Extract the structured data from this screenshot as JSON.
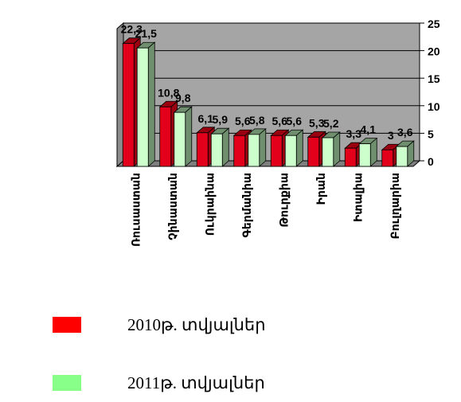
{
  "chart_data": {
    "type": "bar",
    "categories": [
      "Ռուսաստան",
      "Չինաստան",
      "Ուկրաինա",
      "Գերմանիա",
      "Թուրքիա",
      "Իրան",
      "Իտալիա",
      "Բուլղարիա"
    ],
    "series": [
      {
        "name": "2010թ. տվյալներ",
        "values": [
          22.3,
          10.8,
          6.1,
          5.6,
          5.6,
          5.3,
          3.3,
          3
        ]
      },
      {
        "name": "2011թ. տվյալներ",
        "values": [
          21.5,
          9.8,
          5.9,
          5.8,
          5.6,
          5.2,
          4.1,
          3.6
        ]
      }
    ],
    "value_labels": [
      [
        "22,3",
        "10,8",
        "6,1",
        "5,6",
        "5,6",
        "5,3",
        "3,3",
        "3"
      ],
      [
        "21,5",
        "9,8",
        "5,9",
        "5,8",
        "5,6",
        "5,2",
        "4,1",
        "3,6"
      ]
    ],
    "yticks": [
      "0",
      "5",
      "10",
      "15",
      "20",
      "25"
    ],
    "ylim": [
      0,
      25
    ],
    "grid": true,
    "legend_position": "bottom-left",
    "colors": {
      "series1_front": "#e3001b",
      "series1_side": "#9a0010",
      "series2_front": "#ccffcc",
      "series2_side": "#6f8f6f",
      "wall": "#a5a5a5",
      "floor": "#7f7f7f",
      "legend1": "#ff0000",
      "legend2": "#88ff88"
    }
  }
}
